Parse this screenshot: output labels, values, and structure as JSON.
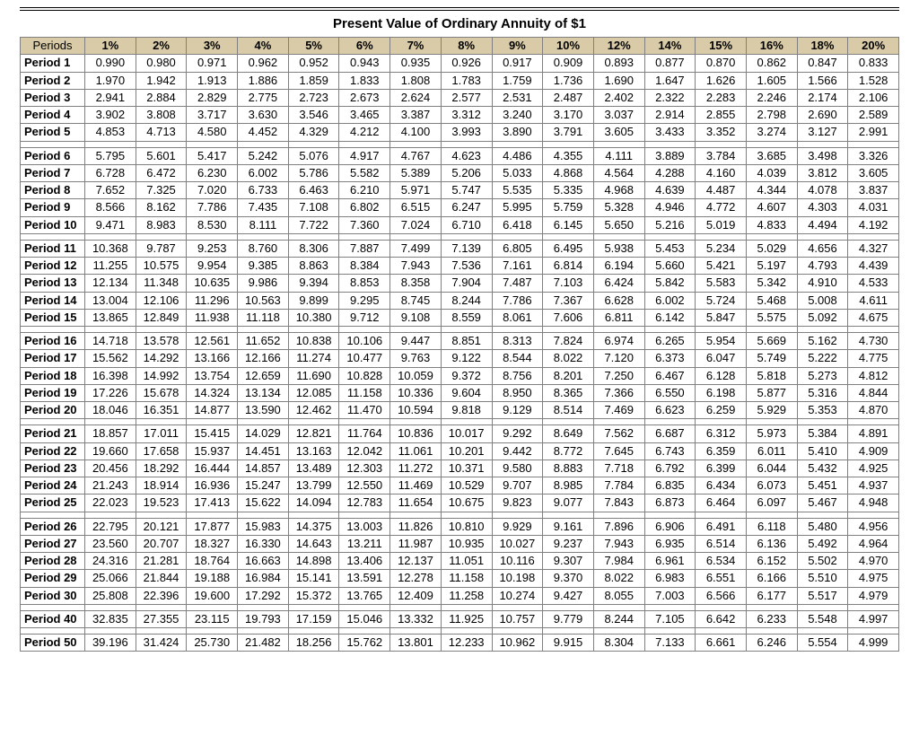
{
  "title": "Present Value of Ordinary Annuity of $1",
  "periods_header": "Periods",
  "colors": {
    "header_bg": "#d9cba7",
    "grid": "#808080",
    "outer_border": "#000000",
    "background": "#ffffff",
    "text": "#000000"
  },
  "typography": {
    "title_fontsize_pt": 11,
    "cell_fontsize_pt": 10,
    "font_family": "Arial"
  },
  "rate_headers": [
    "1%",
    "2%",
    "3%",
    "4%",
    "5%",
    "6%",
    "7%",
    "8%",
    "9%",
    "10%",
    "12%",
    "14%",
    "15%",
    "16%",
    "18%",
    "20%"
  ],
  "groups": [
    {
      "rows": [
        {
          "label": "Period 1",
          "v": [
            "0.990",
            "0.980",
            "0.971",
            "0.962",
            "0.952",
            "0.943",
            "0.935",
            "0.926",
            "0.917",
            "0.909",
            "0.893",
            "0.877",
            "0.870",
            "0.862",
            "0.847",
            "0.833"
          ]
        },
        {
          "label": "Period 2",
          "v": [
            "1.970",
            "1.942",
            "1.913",
            "1.886",
            "1.859",
            "1.833",
            "1.808",
            "1.783",
            "1.759",
            "1.736",
            "1.690",
            "1.647",
            "1.626",
            "1.605",
            "1.566",
            "1.528"
          ]
        },
        {
          "label": "Period 3",
          "v": [
            "2.941",
            "2.884",
            "2.829",
            "2.775",
            "2.723",
            "2.673",
            "2.624",
            "2.577",
            "2.531",
            "2.487",
            "2.402",
            "2.322",
            "2.283",
            "2.246",
            "2.174",
            "2.106"
          ]
        },
        {
          "label": "Period 4",
          "v": [
            "3.902",
            "3.808",
            "3.717",
            "3.630",
            "3.546",
            "3.465",
            "3.387",
            "3.312",
            "3.240",
            "3.170",
            "3.037",
            "2.914",
            "2.855",
            "2.798",
            "2.690",
            "2.589"
          ]
        },
        {
          "label": "Period 5",
          "v": [
            "4.853",
            "4.713",
            "4.580",
            "4.452",
            "4.329",
            "4.212",
            "4.100",
            "3.993",
            "3.890",
            "3.791",
            "3.605",
            "3.433",
            "3.352",
            "3.274",
            "3.127",
            "2.991"
          ]
        }
      ]
    },
    {
      "rows": [
        {
          "label": "Period 6",
          "v": [
            "5.795",
            "5.601",
            "5.417",
            "5.242",
            "5.076",
            "4.917",
            "4.767",
            "4.623",
            "4.486",
            "4.355",
            "4.111",
            "3.889",
            "3.784",
            "3.685",
            "3.498",
            "3.326"
          ]
        },
        {
          "label": "Period 7",
          "v": [
            "6.728",
            "6.472",
            "6.230",
            "6.002",
            "5.786",
            "5.582",
            "5.389",
            "5.206",
            "5.033",
            "4.868",
            "4.564",
            "4.288",
            "4.160",
            "4.039",
            "3.812",
            "3.605"
          ]
        },
        {
          "label": "Period 8",
          "v": [
            "7.652",
            "7.325",
            "7.020",
            "6.733",
            "6.463",
            "6.210",
            "5.971",
            "5.747",
            "5.535",
            "5.335",
            "4.968",
            "4.639",
            "4.487",
            "4.344",
            "4.078",
            "3.837"
          ]
        },
        {
          "label": "Period 9",
          "v": [
            "8.566",
            "8.162",
            "7.786",
            "7.435",
            "7.108",
            "6.802",
            "6.515",
            "6.247",
            "5.995",
            "5.759",
            "5.328",
            "4.946",
            "4.772",
            "4.607",
            "4.303",
            "4.031"
          ]
        },
        {
          "label": "Period 10",
          "v": [
            "9.471",
            "8.983",
            "8.530",
            "8.111",
            "7.722",
            "7.360",
            "7.024",
            "6.710",
            "6.418",
            "6.145",
            "5.650",
            "5.216",
            "5.019",
            "4.833",
            "4.494",
            "4.192"
          ]
        }
      ]
    },
    {
      "rows": [
        {
          "label": "Period 11",
          "v": [
            "10.368",
            "9.787",
            "9.253",
            "8.760",
            "8.306",
            "7.887",
            "7.499",
            "7.139",
            "6.805",
            "6.495",
            "5.938",
            "5.453",
            "5.234",
            "5.029",
            "4.656",
            "4.327"
          ]
        },
        {
          "label": "Period 12",
          "v": [
            "11.255",
            "10.575",
            "9.954",
            "9.385",
            "8.863",
            "8.384",
            "7.943",
            "7.536",
            "7.161",
            "6.814",
            "6.194",
            "5.660",
            "5.421",
            "5.197",
            "4.793",
            "4.439"
          ]
        },
        {
          "label": "Period 13",
          "v": [
            "12.134",
            "11.348",
            "10.635",
            "9.986",
            "9.394",
            "8.853",
            "8.358",
            "7.904",
            "7.487",
            "7.103",
            "6.424",
            "5.842",
            "5.583",
            "5.342",
            "4.910",
            "4.533"
          ]
        },
        {
          "label": "Period 14",
          "v": [
            "13.004",
            "12.106",
            "11.296",
            "10.563",
            "9.899",
            "9.295",
            "8.745",
            "8.244",
            "7.786",
            "7.367",
            "6.628",
            "6.002",
            "5.724",
            "5.468",
            "5.008",
            "4.611"
          ]
        },
        {
          "label": "Period 15",
          "v": [
            "13.865",
            "12.849",
            "11.938",
            "11.118",
            "10.380",
            "9.712",
            "9.108",
            "8.559",
            "8.061",
            "7.606",
            "6.811",
            "6.142",
            "5.847",
            "5.575",
            "5.092",
            "4.675"
          ]
        }
      ]
    },
    {
      "rows": [
        {
          "label": "Period 16",
          "v": [
            "14.718",
            "13.578",
            "12.561",
            "11.652",
            "10.838",
            "10.106",
            "9.447",
            "8.851",
            "8.313",
            "7.824",
            "6.974",
            "6.265",
            "5.954",
            "5.669",
            "5.162",
            "4.730"
          ]
        },
        {
          "label": "Period 17",
          "v": [
            "15.562",
            "14.292",
            "13.166",
            "12.166",
            "11.274",
            "10.477",
            "9.763",
            "9.122",
            "8.544",
            "8.022",
            "7.120",
            "6.373",
            "6.047",
            "5.749",
            "5.222",
            "4.775"
          ]
        },
        {
          "label": "Period 18",
          "v": [
            "16.398",
            "14.992",
            "13.754",
            "12.659",
            "11.690",
            "10.828",
            "10.059",
            "9.372",
            "8.756",
            "8.201",
            "7.250",
            "6.467",
            "6.128",
            "5.818",
            "5.273",
            "4.812"
          ]
        },
        {
          "label": "Period 19",
          "v": [
            "17.226",
            "15.678",
            "14.324",
            "13.134",
            "12.085",
            "11.158",
            "10.336",
            "9.604",
            "8.950",
            "8.365",
            "7.366",
            "6.550",
            "6.198",
            "5.877",
            "5.316",
            "4.844"
          ]
        },
        {
          "label": "Period 20",
          "v": [
            "18.046",
            "16.351",
            "14.877",
            "13.590",
            "12.462",
            "11.470",
            "10.594",
            "9.818",
            "9.129",
            "8.514",
            "7.469",
            "6.623",
            "6.259",
            "5.929",
            "5.353",
            "4.870"
          ]
        }
      ]
    },
    {
      "rows": [
        {
          "label": "Period 21",
          "v": [
            "18.857",
            "17.011",
            "15.415",
            "14.029",
            "12.821",
            "11.764",
            "10.836",
            "10.017",
            "9.292",
            "8.649",
            "7.562",
            "6.687",
            "6.312",
            "5.973",
            "5.384",
            "4.891"
          ]
        },
        {
          "label": "Period 22",
          "v": [
            "19.660",
            "17.658",
            "15.937",
            "14.451",
            "13.163",
            "12.042",
            "11.061",
            "10.201",
            "9.442",
            "8.772",
            "7.645",
            "6.743",
            "6.359",
            "6.011",
            "5.410",
            "4.909"
          ]
        },
        {
          "label": "Period 23",
          "v": [
            "20.456",
            "18.292",
            "16.444",
            "14.857",
            "13.489",
            "12.303",
            "11.272",
            "10.371",
            "9.580",
            "8.883",
            "7.718",
            "6.792",
            "6.399",
            "6.044",
            "5.432",
            "4.925"
          ]
        },
        {
          "label": "Period 24",
          "v": [
            "21.243",
            "18.914",
            "16.936",
            "15.247",
            "13.799",
            "12.550",
            "11.469",
            "10.529",
            "9.707",
            "8.985",
            "7.784",
            "6.835",
            "6.434",
            "6.073",
            "5.451",
            "4.937"
          ]
        },
        {
          "label": "Period 25",
          "v": [
            "22.023",
            "19.523",
            "17.413",
            "15.622",
            "14.094",
            "12.783",
            "11.654",
            "10.675",
            "9.823",
            "9.077",
            "7.843",
            "6.873",
            "6.464",
            "6.097",
            "5.467",
            "4.948"
          ]
        }
      ]
    },
    {
      "rows": [
        {
          "label": "Period 26",
          "v": [
            "22.795",
            "20.121",
            "17.877",
            "15.983",
            "14.375",
            "13.003",
            "11.826",
            "10.810",
            "9.929",
            "9.161",
            "7.896",
            "6.906",
            "6.491",
            "6.118",
            "5.480",
            "4.956"
          ]
        },
        {
          "label": "Period 27",
          "v": [
            "23.560",
            "20.707",
            "18.327",
            "16.330",
            "14.643",
            "13.211",
            "11.987",
            "10.935",
            "10.027",
            "9.237",
            "7.943",
            "6.935",
            "6.514",
            "6.136",
            "5.492",
            "4.964"
          ]
        },
        {
          "label": "Period 28",
          "v": [
            "24.316",
            "21.281",
            "18.764",
            "16.663",
            "14.898",
            "13.406",
            "12.137",
            "11.051",
            "10.116",
            "9.307",
            "7.984",
            "6.961",
            "6.534",
            "6.152",
            "5.502",
            "4.970"
          ]
        },
        {
          "label": "Period 29",
          "v": [
            "25.066",
            "21.844",
            "19.188",
            "16.984",
            "15.141",
            "13.591",
            "12.278",
            "11.158",
            "10.198",
            "9.370",
            "8.022",
            "6.983",
            "6.551",
            "6.166",
            "5.510",
            "4.975"
          ]
        },
        {
          "label": "Period 30",
          "v": [
            "25.808",
            "22.396",
            "19.600",
            "17.292",
            "15.372",
            "13.765",
            "12.409",
            "11.258",
            "10.274",
            "9.427",
            "8.055",
            "7.003",
            "6.566",
            "6.177",
            "5.517",
            "4.979"
          ]
        }
      ]
    },
    {
      "rows": [
        {
          "label": "Period 40",
          "v": [
            "32.835",
            "27.355",
            "23.115",
            "19.793",
            "17.159",
            "15.046",
            "13.332",
            "11.925",
            "10.757",
            "9.779",
            "8.244",
            "7.105",
            "6.642",
            "6.233",
            "5.548",
            "4.997"
          ]
        }
      ]
    },
    {
      "rows": [
        {
          "label": "Period 50",
          "v": [
            "39.196",
            "31.424",
            "25.730",
            "21.482",
            "18.256",
            "15.762",
            "13.801",
            "12.233",
            "10.962",
            "9.915",
            "8.304",
            "7.133",
            "6.661",
            "6.246",
            "5.554",
            "4.999"
          ]
        }
      ]
    }
  ]
}
